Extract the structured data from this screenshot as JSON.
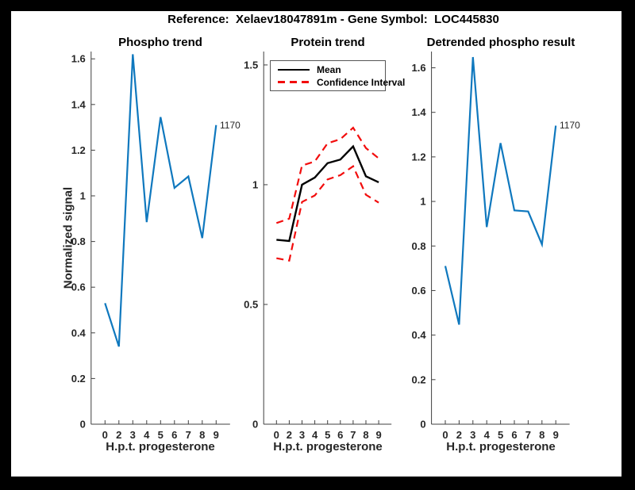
{
  "header": {
    "title": "Reference:  Xelaev18047891m - Gene Symbol:  LOC445830"
  },
  "colors": {
    "line_blue": "#0f78be",
    "mean_black": "#000000",
    "ci_red": "#f20d0d",
    "axis_gray": "#3f3f3f",
    "figure_background": "#ffffff",
    "frame": "#000000"
  },
  "chart_data": [
    {
      "type": "line",
      "title": "Phospho trend",
      "xlabel": "H.p.t. progesterone",
      "ylabel": "Normalized signal",
      "x_tick_labels": [
        "0",
        "2",
        "3",
        "4",
        "5",
        "6",
        "7",
        "8",
        "9"
      ],
      "y_ticks": [
        0,
        0.2,
        0.4,
        0.6,
        0.8,
        1,
        1.2,
        1.4,
        1.6
      ],
      "y_tick_labels": [
        "0",
        "0.2",
        "0.4",
        "0.6",
        "0.8",
        "1",
        "1.2",
        "1.4",
        "1.6"
      ],
      "ylim": [
        0,
        1.632
      ],
      "grid": false,
      "end_label": "1170",
      "series": [
        {
          "name": "phospho-signal",
          "color": "#0f78be",
          "style": "solid",
          "width": 2.2,
          "values": [
            0.53,
            0.34,
            1.62,
            0.885,
            1.345,
            1.035,
            1.085,
            0.815,
            1.31
          ]
        }
      ]
    },
    {
      "type": "line",
      "title": "Protein trend",
      "xlabel": "H.p.t. progesterone",
      "ylabel": "",
      "x_tick_labels": [
        "0",
        "2",
        "3",
        "4",
        "5",
        "6",
        "7",
        "8",
        "9"
      ],
      "y_ticks": [
        0,
        0.5,
        1,
        1.5
      ],
      "y_tick_labels": [
        "0",
        "0.5",
        "1",
        "1.5"
      ],
      "ylim": [
        0,
        1.556
      ],
      "grid": false,
      "legend": {
        "position": "top-left",
        "entries": [
          {
            "label": "Mean",
            "color": "#000000",
            "style": "solid"
          },
          {
            "label": "Confidence Interval",
            "color": "#f20d0d",
            "style": "dashed"
          }
        ]
      },
      "series": [
        {
          "name": "confidence-upper",
          "color": "#f20d0d",
          "style": "dashed",
          "width": 2.2,
          "values": [
            0.84,
            0.858,
            1.08,
            1.097,
            1.173,
            1.19,
            1.238,
            1.153,
            1.11
          ]
        },
        {
          "name": "confidence-lower",
          "color": "#f20d0d",
          "style": "dashed",
          "width": 2.2,
          "values": [
            0.693,
            0.683,
            0.928,
            0.955,
            1.022,
            1.04,
            1.077,
            0.958,
            0.925
          ]
        },
        {
          "name": "mean",
          "color": "#000000",
          "style": "solid",
          "width": 2.4,
          "values": [
            0.77,
            0.765,
            1.0,
            1.03,
            1.09,
            1.105,
            1.16,
            1.035,
            1.01
          ]
        }
      ]
    },
    {
      "type": "line",
      "title": "Detrended phospho result",
      "xlabel": "H.p.t. progesterone",
      "ylabel": "",
      "x_tick_labels": [
        "0",
        "2",
        "3",
        "4",
        "5",
        "6",
        "7",
        "8",
        "9"
      ],
      "y_ticks": [
        0,
        0.2,
        0.4,
        0.6,
        0.8,
        1,
        1.2,
        1.4,
        1.6
      ],
      "y_tick_labels": [
        "0",
        "0.2",
        "0.4",
        "0.6",
        "0.8",
        "1",
        "1.2",
        "1.4",
        "1.6"
      ],
      "ylim": [
        0,
        1.673
      ],
      "grid": false,
      "end_label": "1170",
      "series": [
        {
          "name": "detrended-phospho",
          "color": "#0f78be",
          "style": "solid",
          "width": 2.2,
          "values": [
            0.71,
            0.447,
            1.648,
            0.885,
            1.262,
            0.96,
            0.955,
            0.807,
            1.34
          ]
        }
      ]
    }
  ]
}
